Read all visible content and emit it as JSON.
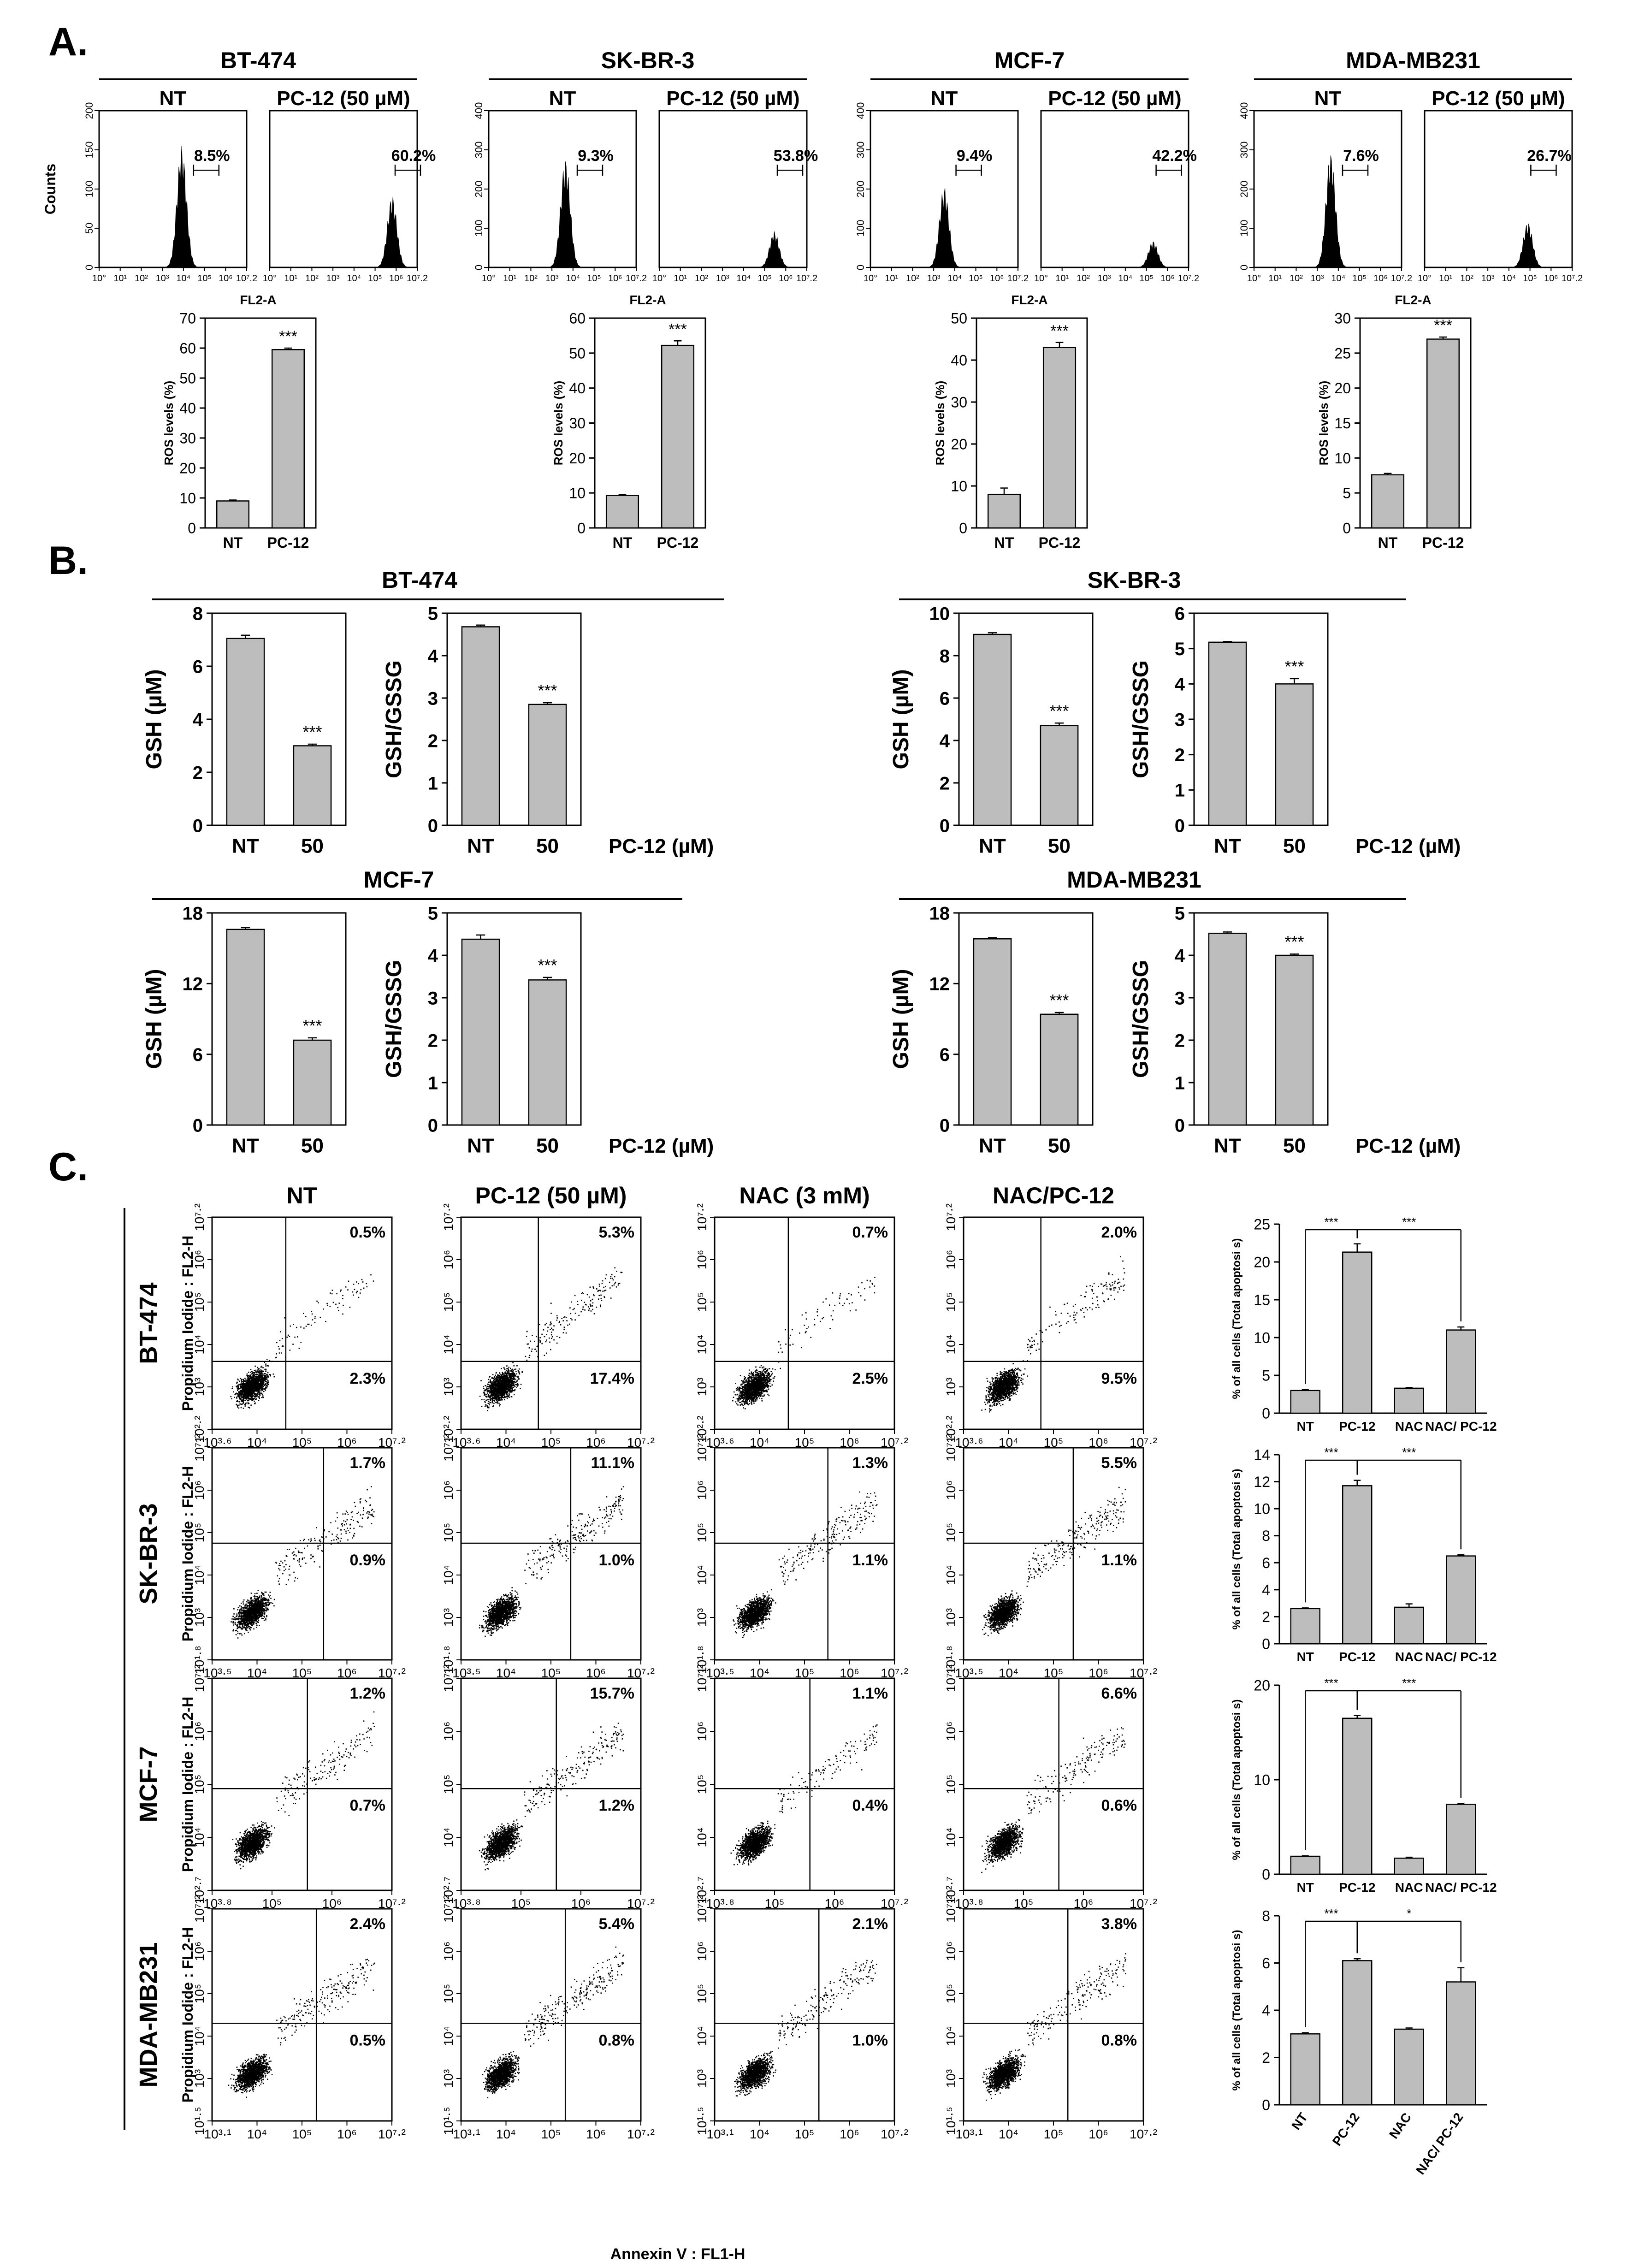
{
  "panel_labels": {
    "a": "A.",
    "b": "B.",
    "c": "C."
  },
  "cell_lines": [
    "BT-474",
    "SK-BR-3",
    "MCF-7",
    "MDA-MB231"
  ],
  "colors": {
    "bar": "#bdbdbd",
    "ink": "#000000"
  },
  "panel_a": {
    "condition_labels": [
      "NT",
      "PC-12 (50 µM)"
    ],
    "hist_ylabel": "Counts",
    "hist_xlabel": "FL2-A",
    "hist_xticks": [
      "10°",
      "10¹",
      "10²",
      "10³",
      "10⁴",
      "10⁵",
      "10⁶",
      "10⁷.2"
    ],
    "hist_yticks": [
      [
        "0",
        "50",
        "100",
        "150",
        "200"
      ],
      [
        "0",
        "100",
        "200",
        "300",
        "400"
      ],
      [
        "0",
        "100",
        "200",
        "300",
        "400"
      ],
      [
        "0",
        "100",
        "200",
        "300",
        "400"
      ]
    ],
    "gate_percent": [
      [
        "8.5%",
        "60.2%"
      ],
      [
        "9.3%",
        "53.8%"
      ],
      [
        "9.4%",
        "42.2%"
      ],
      [
        "7.6%",
        "26.7%"
      ]
    ],
    "bar_ylabel": "ROS levels (%)",
    "bar_categories": [
      "NT",
      "PC-12"
    ],
    "significance": "***"
  },
  "panel_b": {
    "gsh_ylabel": "GSH (µM)",
    "ratio_ylabel": "GSH/GSSG",
    "categories": [
      "NT",
      "50"
    ],
    "treatment_label": "PC-12 (µM)",
    "significance": "***"
  },
  "panel_c": {
    "column_titles": [
      "NT",
      "PC-12 (50 µM)",
      "NAC (3 mM)",
      "NAC/PC-12"
    ],
    "dot_ylabel": "Propidium Iodide : FL2-H",
    "dot_xlabel": "Annexin V : FL1-H",
    "bar_ylabel": "% of all cells (Total apoptosi s)",
    "bar_categories": [
      "NT",
      "PC-12",
      "NAC",
      "NAC/ PC-12"
    ],
    "dot_axes": [
      {
        "x": [
          "10³·⁶",
          "10⁴",
          "10⁵",
          "10⁶",
          "10⁷·²"
        ],
        "y": [
          "10²·²",
          "10³",
          "10⁴",
          "10⁵",
          "10⁶",
          "10⁷·²"
        ]
      },
      {
        "x": [
          "10³·⁵",
          "10⁴",
          "10⁵",
          "10⁶",
          "10⁷·²"
        ],
        "y": [
          "10¹·⁸",
          "10³",
          "10⁴",
          "10⁵",
          "10⁶",
          "10⁷·²"
        ]
      },
      {
        "x": [
          "10³·⁸",
          "10⁵",
          "10⁶",
          "10⁷·²"
        ],
        "y": [
          "10²·⁷",
          "10⁴",
          "10⁵",
          "10⁶",
          "10⁷·²"
        ]
      },
      {
        "x": [
          "10³·¹",
          "10⁴",
          "10⁵",
          "10⁶",
          "10⁷·²"
        ],
        "y": [
          "10¹·⁵",
          "10³",
          "10⁴",
          "10⁵",
          "10⁶",
          "10⁷·²"
        ]
      }
    ],
    "quadrant_percent": [
      [
        [
          "0.5%",
          "2.3%"
        ],
        [
          "5.3%",
          "17.4%"
        ],
        [
          "0.7%",
          "2.5%"
        ],
        [
          "2.0%",
          "9.5%"
        ]
      ],
      [
        [
          "1.7%",
          "0.9%"
        ],
        [
          "11.1%",
          "1.0%"
        ],
        [
          "1.3%",
          "1.1%"
        ],
        [
          "5.5%",
          "1.1%"
        ]
      ],
      [
        [
          "1.2%",
          "0.7%"
        ],
        [
          "15.7%",
          "1.2%"
        ],
        [
          "1.1%",
          "0.4%"
        ],
        [
          "6.6%",
          "0.6%"
        ]
      ],
      [
        [
          "2.4%",
          "0.5%"
        ],
        [
          "5.4%",
          "0.8%"
        ],
        [
          "2.1%",
          "1.0%"
        ],
        [
          "3.8%",
          "0.8%"
        ]
      ]
    ],
    "significance": [
      [
        "***",
        "***"
      ],
      [
        "***",
        "***"
      ],
      [
        "***",
        "***"
      ],
      [
        "***",
        "*"
      ]
    ]
  },
  "chart_data": [
    {
      "id": "a-ros-bt474",
      "type": "bar",
      "title": "BT-474",
      "ylabel": "ROS levels (%)",
      "categories": [
        "NT",
        "PC-12"
      ],
      "values": [
        9,
        59.5
      ],
      "errors": [
        0.3,
        0.5
      ],
      "ylim": [
        0,
        70
      ],
      "yticks": [
        0,
        10,
        20,
        30,
        40,
        50,
        60,
        70
      ],
      "grid": false
    },
    {
      "id": "a-ros-skbr3",
      "type": "bar",
      "title": "SK-BR-3",
      "ylabel": "ROS levels (%)",
      "categories": [
        "NT",
        "PC-12"
      ],
      "values": [
        9.3,
        52.2
      ],
      "errors": [
        0.3,
        1.3
      ],
      "ylim": [
        0,
        60
      ],
      "yticks": [
        0,
        10,
        20,
        30,
        40,
        50,
        60
      ],
      "grid": false
    },
    {
      "id": "a-ros-mcf7",
      "type": "bar",
      "title": "MCF-7",
      "ylabel": "ROS levels (%)",
      "categories": [
        "NT",
        "PC-12"
      ],
      "values": [
        8,
        43
      ],
      "errors": [
        1.5,
        1.2
      ],
      "ylim": [
        0,
        50
      ],
      "yticks": [
        0,
        10,
        20,
        30,
        40,
        50
      ],
      "grid": false
    },
    {
      "id": "a-ros-mdamb231",
      "type": "bar",
      "title": "MDA-MB231",
      "ylabel": "ROS levels (%)",
      "categories": [
        "NT",
        "PC-12"
      ],
      "values": [
        7.6,
        27
      ],
      "errors": [
        0.2,
        0.3
      ],
      "ylim": [
        0,
        30
      ],
      "yticks": [
        0,
        5,
        10,
        15,
        20,
        25,
        30
      ],
      "grid": false
    },
    {
      "id": "b-gsh-bt474",
      "type": "bar",
      "title": "BT-474",
      "ylabel": "GSH (µM)",
      "categories": [
        "NT",
        "50"
      ],
      "values": [
        7.05,
        3.0
      ],
      "errors": [
        0.12,
        0.06
      ],
      "ylim": [
        0,
        8
      ],
      "yticks": [
        0,
        2,
        4,
        6,
        8
      ],
      "grid": false
    },
    {
      "id": "b-ratio-bt474",
      "type": "bar",
      "title": "BT-474",
      "ylabel": "GSH/GSSG",
      "categories": [
        "NT",
        "50"
      ],
      "values": [
        4.68,
        2.85
      ],
      "errors": [
        0.04,
        0.04
      ],
      "ylim": [
        0,
        5
      ],
      "yticks": [
        0,
        1,
        2,
        3,
        4,
        5
      ],
      "grid": false
    },
    {
      "id": "b-gsh-skbr3",
      "type": "bar",
      "title": "SK-BR-3",
      "ylabel": "GSH (µM)",
      "categories": [
        "NT",
        "50"
      ],
      "values": [
        9.0,
        4.7
      ],
      "errors": [
        0.08,
        0.12
      ],
      "ylim": [
        0,
        10
      ],
      "yticks": [
        0,
        2,
        4,
        6,
        8,
        10
      ],
      "grid": false
    },
    {
      "id": "b-ratio-skbr3",
      "type": "bar",
      "title": "SK-BR-3",
      "ylabel": "GSH/GSSG",
      "categories": [
        "NT",
        "50"
      ],
      "values": [
        5.18,
        4.0
      ],
      "errors": [
        0.02,
        0.15
      ],
      "ylim": [
        0,
        6
      ],
      "yticks": [
        0,
        1,
        2,
        3,
        4,
        5,
        6
      ],
      "grid": false
    },
    {
      "id": "b-gsh-mcf7",
      "type": "bar",
      "title": "MCF-7",
      "ylabel": "GSH (µM)",
      "categories": [
        "NT",
        "50"
      ],
      "values": [
        16.6,
        7.2
      ],
      "errors": [
        0.15,
        0.2
      ],
      "ylim": [
        0,
        18
      ],
      "yticks": [
        0,
        6,
        12,
        18
      ],
      "grid": false
    },
    {
      "id": "b-ratio-mcf7",
      "type": "bar",
      "title": "MCF-7",
      "ylabel": "GSH/GSSG",
      "categories": [
        "NT",
        "50"
      ],
      "values": [
        4.38,
        3.42
      ],
      "errors": [
        0.1,
        0.06
      ],
      "ylim": [
        0,
        5
      ],
      "yticks": [
        0,
        1,
        2,
        3,
        4,
        5
      ],
      "grid": false
    },
    {
      "id": "b-gsh-mdamb231",
      "type": "bar",
      "title": "MDA-MB231",
      "ylabel": "GSH (µM)",
      "categories": [
        "NT",
        "50"
      ],
      "values": [
        15.8,
        9.4
      ],
      "errors": [
        0.1,
        0.15
      ],
      "ylim": [
        0,
        18
      ],
      "yticks": [
        0,
        6,
        12,
        18
      ],
      "grid": false
    },
    {
      "id": "b-ratio-mdamb231",
      "type": "bar",
      "title": "MDA-MB231",
      "ylabel": "GSH/GSSG",
      "categories": [
        "NT",
        "50"
      ],
      "values": [
        4.52,
        4.0
      ],
      "errors": [
        0.03,
        0.03
      ],
      "ylim": [
        0,
        5
      ],
      "yticks": [
        0,
        1,
        2,
        3,
        4,
        5
      ],
      "grid": false
    },
    {
      "id": "c-apop-bt474",
      "type": "bar",
      "title": "BT-474",
      "ylabel": "% of all cells (Total apoptosi s)",
      "categories": [
        "NT",
        "PC-12",
        "NAC",
        "NAC/ PC-12"
      ],
      "values": [
        3.0,
        21.3,
        3.3,
        11.0
      ],
      "errors": [
        0.15,
        1.1,
        0.1,
        0.4
      ],
      "ylim": [
        0,
        25
      ],
      "yticks": [
        0,
        5,
        10,
        15,
        20,
        25
      ],
      "grid": false
    },
    {
      "id": "c-apop-skbr3",
      "type": "bar",
      "title": "SK-BR-3",
      "ylabel": "% of all cells (Total apoptosi s)",
      "categories": [
        "NT",
        "PC-12",
        "NAC",
        "NAC/ PC-12"
      ],
      "values": [
        2.6,
        11.7,
        2.7,
        6.5
      ],
      "errors": [
        0.05,
        0.4,
        0.25,
        0.08
      ],
      "ylim": [
        0,
        14
      ],
      "yticks": [
        0,
        2,
        4,
        6,
        8,
        10,
        12,
        14
      ],
      "grid": false
    },
    {
      "id": "c-apop-mcf7",
      "type": "bar",
      "title": "MCF-7",
      "ylabel": "% of all cells (Total apoptosi s)",
      "categories": [
        "NT",
        "PC-12",
        "NAC",
        "NAC/ PC-12"
      ],
      "values": [
        1.9,
        16.5,
        1.7,
        7.4
      ],
      "errors": [
        0.05,
        0.3,
        0.1,
        0.1
      ],
      "ylim": [
        0,
        20
      ],
      "yticks": [
        0,
        10,
        20
      ],
      "grid": false
    },
    {
      "id": "c-apop-mdamb231",
      "type": "bar",
      "title": "MDA-MB231",
      "ylabel": "% of all cells (Total apoptosi s)",
      "categories": [
        "NT",
        "PC-12",
        "NAC",
        "NAC/ PC-12"
      ],
      "values": [
        3.0,
        6.1,
        3.2,
        5.2
      ],
      "errors": [
        0.05,
        0.08,
        0.05,
        0.6
      ],
      "ylim": [
        0,
        8
      ],
      "yticks": [
        0,
        2,
        4,
        6,
        8
      ],
      "grid": false
    }
  ]
}
